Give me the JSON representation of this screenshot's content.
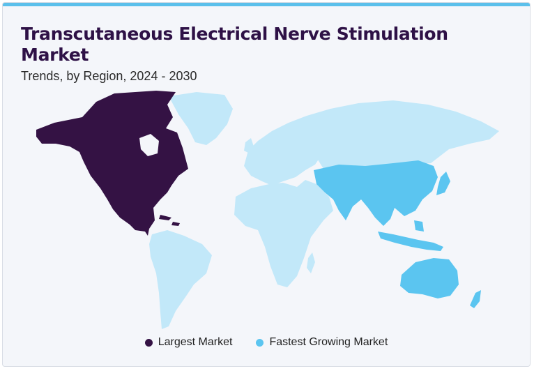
{
  "header": {
    "title": "Transcutaneous Electrical Nerve Stimulation Market",
    "subtitle": "Trends, by Region, 2024 - 2030"
  },
  "colors": {
    "accent_bar": "#5bc0eb",
    "title": "#2e1146",
    "largest": "#341244",
    "fastest": "#5bc5f0",
    "other": "#c2e8f9"
  },
  "map": {
    "regions": [
      {
        "name": "North America",
        "status": "largest"
      },
      {
        "name": "Asia Pacific",
        "status": "fastest"
      },
      {
        "name": "Europe",
        "status": "other"
      },
      {
        "name": "Latin America",
        "status": "other"
      },
      {
        "name": "Middle East & Africa",
        "status": "other"
      }
    ]
  },
  "legend": {
    "largest_label": "Largest Market",
    "fastest_label": "Fastest Growing Market"
  }
}
